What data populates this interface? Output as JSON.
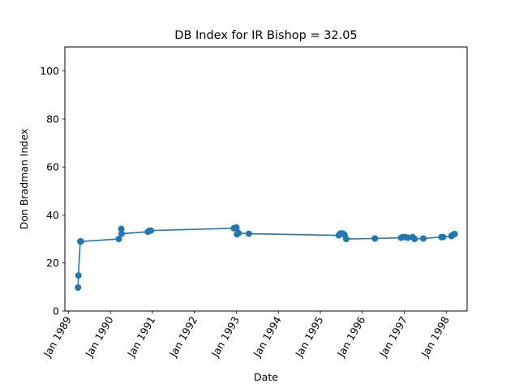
{
  "chart_data": {
    "type": "line",
    "title": "DB Index for IR Bishop = 32.05",
    "xlabel": "Date",
    "ylabel": "Don Bradman Index",
    "x_ticks": [
      "Jan 1989",
      "Jan 1990",
      "Jan 1991",
      "Jan 1992",
      "Jan 1993",
      "Jan 1994",
      "Jan 1995",
      "Jan 1996",
      "Jan 1997",
      "Jan 1998"
    ],
    "y_ticks": [
      "0",
      "20",
      "40",
      "60",
      "80",
      "100"
    ],
    "xlim": [
      "1988-12-01",
      "1998-07-01"
    ],
    "ylim": [
      0,
      110
    ],
    "grid": false,
    "color": "#1f77b4",
    "series": [
      {
        "x": [
          "1989-03-25",
          "1989-03-29",
          "1989-04-14",
          "1989-04-20",
          "1990-03-15",
          "1990-04-05",
          "1990-04-09",
          "1990-11-23",
          "1990-12-08",
          "1990-12-20",
          "1992-12-10",
          "1993-01-01",
          "1993-01-06",
          "1993-01-20",
          "1993-04-20",
          "1995-06-10",
          "1995-06-25",
          "1995-07-15",
          "1995-07-30",
          "1995-08-14",
          "1996-04-20",
          "1996-12-04",
          "1996-12-20",
          "1997-01-10",
          "1997-02-01",
          "1997-03-15",
          "1997-04-01",
          "1997-06-15",
          "1997-11-20",
          "1997-12-05",
          "1998-02-15",
          "1998-03-01",
          "1998-03-15"
        ],
        "values": [
          9.8,
          14.8,
          29.0,
          29.0,
          30.0,
          34.2,
          32.2,
          33.0,
          33.5,
          33.5,
          34.5,
          34.8,
          32.0,
          32.5,
          32.2,
          31.5,
          32.3,
          32.3,
          31.8,
          30.0,
          30.2,
          30.5,
          30.8,
          30.8,
          30.5,
          30.8,
          30.0,
          30.2,
          30.8,
          30.8,
          31.2,
          31.8,
          32.05
        ]
      }
    ]
  }
}
